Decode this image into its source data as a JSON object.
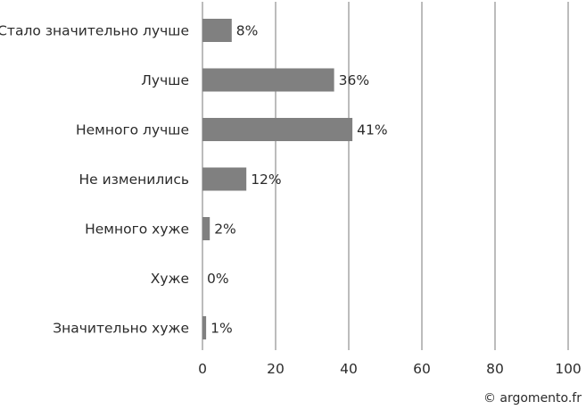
{
  "chart_data": {
    "type": "bar",
    "orientation": "horizontal",
    "categories": [
      "Стало значительно лучше",
      "Лучше",
      "Немного лучше",
      "Не изменились",
      "Немного хуже",
      "Хуже",
      "Значительно хуже"
    ],
    "values": [
      8,
      36,
      41,
      12,
      2,
      0,
      1
    ],
    "value_labels": [
      "8%",
      "36%",
      "41%",
      "12%",
      "2%",
      "0%",
      "1%"
    ],
    "x_ticks": [
      0,
      20,
      40,
      60,
      80,
      100
    ],
    "xlim": [
      0,
      100
    ],
    "grid": "vertical",
    "bar_color": "#808080",
    "grid_color": "#7a7a7a",
    "text_color": "#2b2b2b"
  },
  "credit": "© argomento.fr"
}
